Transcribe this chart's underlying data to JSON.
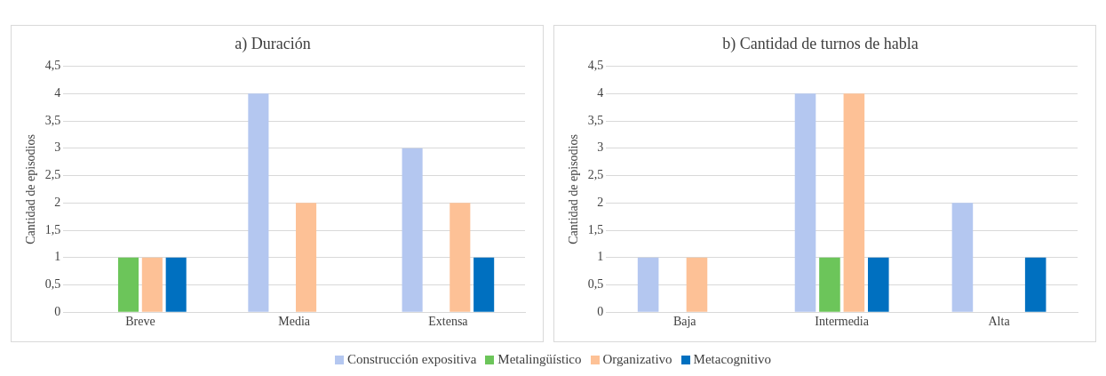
{
  "chart_data": [
    {
      "type": "bar",
      "title": "a) Duración",
      "ylabel": "Cantidad de episodios",
      "categories": [
        "Breve",
        "Media",
        "Extensa"
      ],
      "series": [
        {
          "name": "Construcción expositiva",
          "color": "#b4c7f0",
          "values": [
            0,
            4,
            3
          ]
        },
        {
          "name": "Metalingüístico",
          "color": "#6cc55a",
          "values": [
            1,
            0,
            0
          ]
        },
        {
          "name": "Organizativo",
          "color": "#fdc196",
          "values": [
            1,
            2,
            2
          ]
        },
        {
          "name": "Metacognitivo",
          "color": "#0070c0",
          "values": [
            1,
            0,
            1
          ]
        }
      ],
      "ylim": [
        0,
        4.5
      ],
      "yticks": [
        0,
        {
          "value": 0.5,
          "label": "0,5"
        },
        1,
        {
          "value": 1.5,
          "label": "1,5"
        },
        2,
        {
          "value": 2.5,
          "label": "2,5"
        },
        3,
        {
          "value": 3.5,
          "label": "3,5"
        },
        4,
        {
          "value": 4.5,
          "label": "4,5"
        }
      ],
      "grid": "y",
      "legend": "bottom"
    },
    {
      "type": "bar",
      "title": "b) Cantidad de turnos de habla",
      "ylabel": "Cantidad de episodios",
      "categories": [
        "Baja",
        "Intermedia",
        "Alta"
      ],
      "series": [
        {
          "color": "#b4c7f0",
          "values": [
            1,
            4,
            2
          ]
        },
        {
          "color": "#6cc55a",
          "values": [
            0,
            1,
            0
          ]
        },
        {
          "color": "#fdc196",
          "values": [
            1,
            4,
            0
          ]
        },
        {
          "color": "#0070c0",
          "values": [
            0,
            1,
            1
          ]
        }
      ],
      "ylim": [
        0,
        4.5
      ],
      "yticks": [
        0,
        {
          "value": 0.5,
          "label": "0,5"
        },
        1,
        {
          "value": 1.5,
          "label": "1,5"
        },
        2,
        {
          "value": 2.5,
          "label": "2,5"
        },
        3,
        {
          "value": 3.5,
          "label": "3,5"
        },
        4,
        {
          "value": 4.5,
          "label": "4,5"
        }
      ],
      "grid": "y"
    }
  ]
}
